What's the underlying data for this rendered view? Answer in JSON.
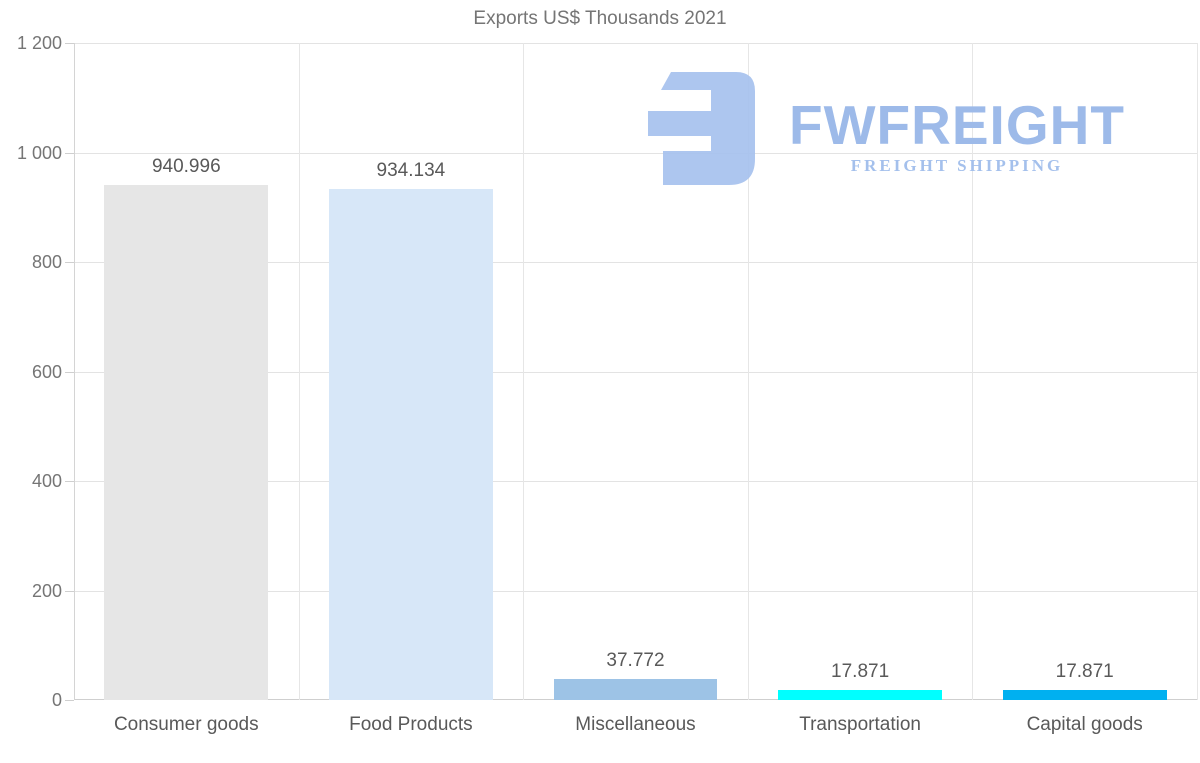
{
  "chart_data": {
    "type": "bar",
    "title": "Exports US$ Thousands 2021",
    "categories": [
      "Consumer goods",
      "Food Products",
      "Miscellaneous",
      "Transportation",
      "Capital goods"
    ],
    "values": [
      940.996,
      934.134,
      37.772,
      17.871,
      17.871
    ],
    "value_labels": [
      "940.996",
      "934.134",
      "37.772",
      "17.871",
      "17.871"
    ],
    "bar_colors": [
      "#e6e6e6",
      "#d7e7f8",
      "#9dc3e6",
      "#00ffff",
      "#00b0f0"
    ],
    "xlabel": "",
    "ylabel": "",
    "ylim": [
      0,
      1200
    ],
    "yticks": [
      0,
      200,
      400,
      600,
      800,
      1000,
      1200
    ],
    "ytick_labels": [
      "0",
      "200",
      "400",
      "600",
      "800",
      "1 000",
      "1 200"
    ],
    "grid": "horizontal and vertical light gray gridlines",
    "legend": "none"
  },
  "logo": {
    "brand": "FWFREIGHT",
    "tagline": "FREIGHT SHIPPING",
    "mark_color": "#a7c2ee",
    "brand_text_color": "#9dbae9",
    "tagline_text_color": "#a4c0ec"
  },
  "colors": {
    "background": "#ffffff",
    "title_text": "#757575",
    "axis_tick_text": "#757575",
    "data_label_text": "#595959",
    "category_label_text": "#595959",
    "gridline": "#e3e3e3",
    "axis_line": "#cfcfcf"
  }
}
